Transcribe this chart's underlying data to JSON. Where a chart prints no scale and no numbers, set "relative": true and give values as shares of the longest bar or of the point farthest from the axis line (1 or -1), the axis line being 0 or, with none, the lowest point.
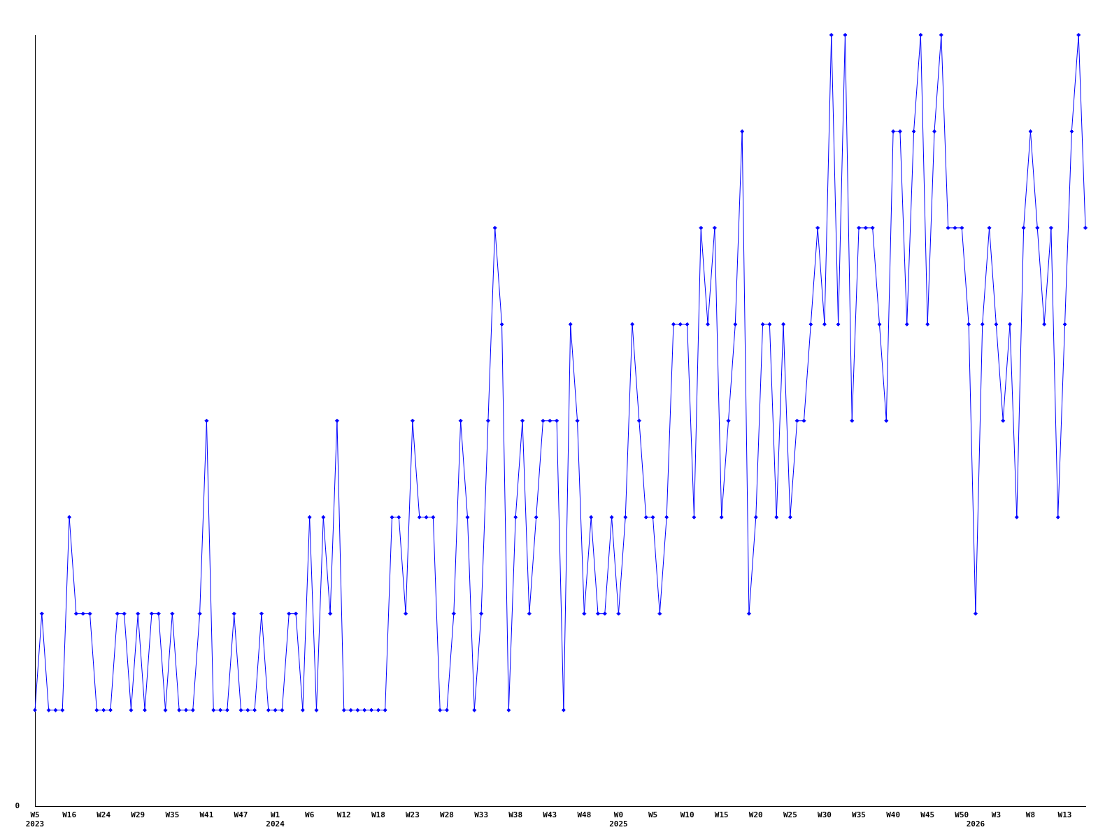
{
  "chart_data": {
    "type": "line",
    "relative": true,
    "color": "#0000ff",
    "marker": "diamond",
    "line_style": "solid",
    "grid": false,
    "legend": false,
    "annotations": [
      "0"
    ],
    "categories": [
      "W5\n2023",
      null,
      null,
      null,
      null,
      "W16",
      null,
      null,
      null,
      null,
      "W24",
      null,
      null,
      null,
      null,
      "W29",
      null,
      null,
      null,
      null,
      "W35",
      null,
      null,
      null,
      null,
      "W41",
      null,
      null,
      null,
      null,
      "W47",
      null,
      null,
      null,
      null,
      "W1\n2024",
      null,
      null,
      null,
      null,
      "W6",
      null,
      null,
      null,
      null,
      "W12",
      null,
      null,
      null,
      null,
      "W18",
      null,
      null,
      null,
      null,
      "W23",
      null,
      null,
      null,
      null,
      "W28",
      null,
      null,
      null,
      null,
      "W33",
      null,
      null,
      null,
      null,
      "W38",
      null,
      null,
      null,
      null,
      "W43",
      null,
      null,
      null,
      null,
      "W48",
      null,
      null,
      null,
      null,
      "W0\n2025",
      null,
      null,
      null,
      null,
      "W5",
      null,
      null,
      null,
      null,
      "W10",
      null,
      null,
      null,
      null,
      "W15",
      null,
      null,
      null,
      null,
      "W20",
      null,
      null,
      null,
      null,
      "W25",
      null,
      null,
      null,
      null,
      "W30",
      null,
      null,
      null,
      null,
      "W35",
      null,
      null,
      null,
      null,
      "W40",
      null,
      null,
      null,
      null,
      "W45",
      null,
      null,
      null,
      null,
      "W50",
      null,
      "\n2026",
      null,
      null,
      "W3",
      null,
      null,
      null,
      null,
      "W8",
      null,
      null,
      null,
      null,
      "W13",
      null,
      null,
      null
    ],
    "values": [
      0.125,
      0.25,
      0.125,
      0.125,
      0.125,
      0.375,
      0.25,
      0.25,
      0.25,
      0.125,
      0.125,
      0.125,
      0.25,
      0.25,
      0.125,
      0.25,
      0.125,
      0.25,
      0.25,
      0.125,
      0.25,
      0.125,
      0.125,
      0.125,
      0.25,
      0.5,
      0.125,
      0.125,
      0.125,
      0.25,
      0.125,
      0.125,
      0.125,
      0.25,
      0.125,
      0.125,
      0.125,
      0.25,
      0.25,
      0.125,
      0.375,
      0.125,
      0.375,
      0.25,
      0.5,
      0.125,
      0.125,
      0.125,
      0.125,
      0.125,
      0.125,
      0.125,
      0.375,
      0.375,
      0.25,
      0.5,
      0.375,
      0.375,
      0.375,
      0.125,
      0.125,
      0.25,
      0.5,
      0.375,
      0.125,
      0.25,
      0.5,
      0.75,
      0.625,
      0.125,
      0.375,
      0.5,
      0.25,
      0.375,
      0.5,
      0.5,
      0.5,
      0.125,
      0.625,
      0.5,
      0.25,
      0.375,
      0.25,
      0.25,
      0.375,
      0.25,
      0.375,
      0.625,
      0.5,
      0.375,
      0.375,
      0.25,
      0.375,
      0.625,
      0.625,
      0.625,
      0.375,
      0.75,
      0.625,
      0.75,
      0.375,
      0.5,
      0.625,
      0.875,
      0.25,
      0.375,
      0.625,
      0.625,
      0.375,
      0.625,
      0.375,
      0.5,
      0.5,
      0.625,
      0.75,
      0.625,
      1,
      0.625,
      1,
      0.5,
      0.75,
      0.75,
      0.75,
      0.625,
      0.5,
      0.875,
      0.875,
      0.625,
      0.875,
      1,
      0.625,
      0.875,
      1,
      0.75,
      0.75,
      0.75,
      0.625,
      0.25,
      0.625,
      0.75,
      0.625,
      0.5,
      0.625,
      0.375,
      0.75,
      0.875,
      0.75,
      0.625,
      0.75,
      0.375,
      0.625,
      0.875,
      1,
      0.75
    ]
  }
}
